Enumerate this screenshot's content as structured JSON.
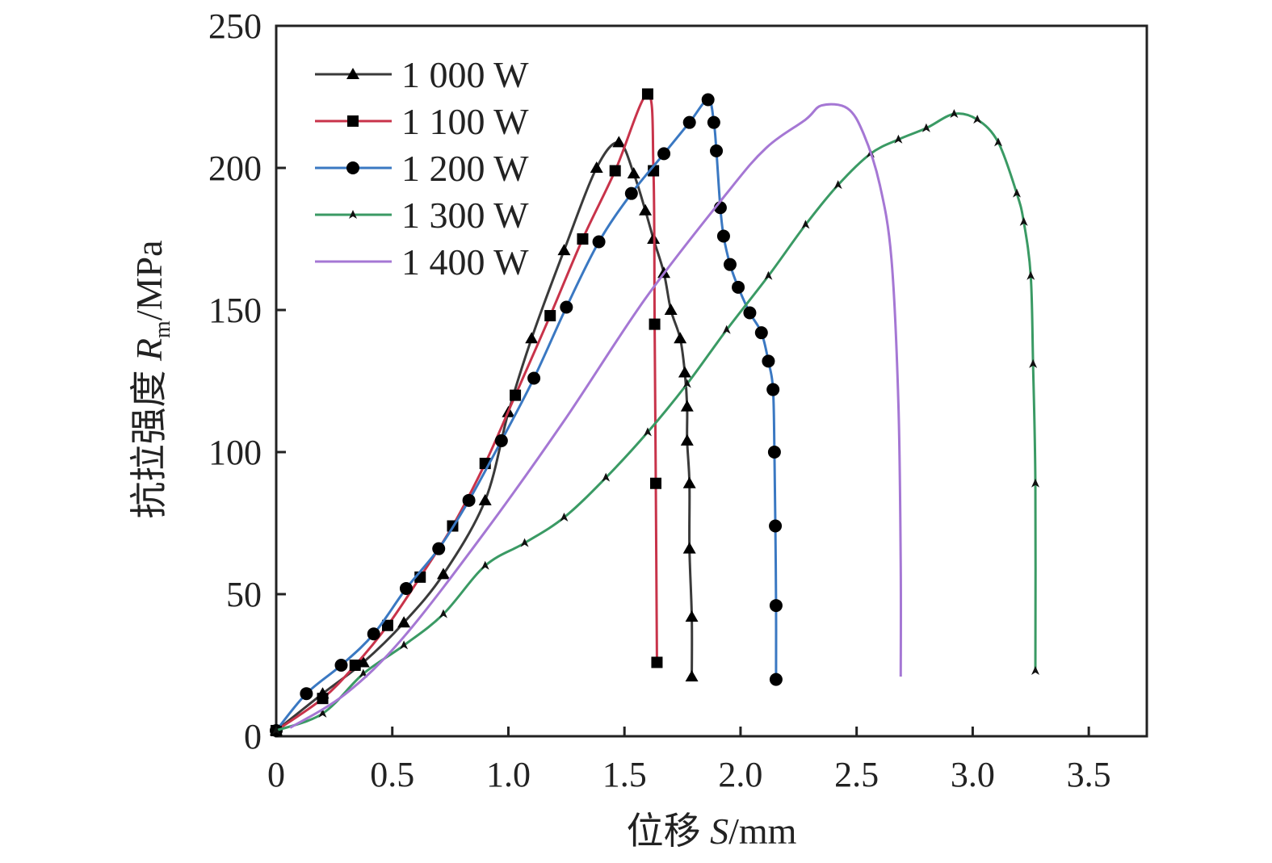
{
  "chart_data": {
    "type": "line",
    "title": "",
    "xlabel": "位移 S/mm",
    "xlabel_prefix": "位移 ",
    "xlabel_var": "S",
    "xlabel_unit": "/mm",
    "ylabel": "抗拉强度 Rm/MPa",
    "ylabel_prefix": "抗拉强度 ",
    "ylabel_var": "R",
    "ylabel_sub": "m",
    "ylabel_unit": "/MPa",
    "xlim": [
      0,
      3.75
    ],
    "ylim": [
      0,
      250
    ],
    "xticks": [
      "0",
      "0.5",
      "1.0",
      "1.5",
      "2.0",
      "2.5",
      "3.0",
      "3.5"
    ],
    "xtick_values": [
      0,
      0.5,
      1.0,
      1.5,
      2.0,
      2.5,
      3.0,
      3.5
    ],
    "yticks": [
      "0",
      "50",
      "100",
      "150",
      "200",
      "250"
    ],
    "ytick_values": [
      0,
      50,
      100,
      150,
      200,
      250
    ],
    "grid": false,
    "legend_position": "top-left",
    "series": [
      {
        "name": "1 000 W",
        "color": "#3a3a3a",
        "marker": "triangle",
        "x": [
          0,
          0.2,
          0.375,
          0.55,
          0.72,
          0.9,
          1.0,
          1.1,
          1.24,
          1.38,
          1.476,
          1.54,
          1.59,
          1.625,
          1.67,
          1.7,
          1.74,
          1.76,
          1.77,
          1.77,
          1.78,
          1.78,
          1.79,
          1.79
        ],
        "y": [
          2,
          15,
          26,
          40,
          57,
          83,
          114,
          140,
          171,
          200,
          209,
          198,
          185,
          175,
          163,
          150,
          140,
          128,
          116,
          104,
          89,
          66,
          42,
          21
        ]
      },
      {
        "name": "1 100 W",
        "color": "#c8334a",
        "marker": "square",
        "x": [
          0,
          0.2,
          0.34,
          0.48,
          0.62,
          0.76,
          0.9,
          1.03,
          1.18,
          1.32,
          1.46,
          1.6,
          1.625,
          1.63,
          1.635,
          1.64
        ],
        "y": [
          2,
          13.3,
          25,
          39,
          56,
          74,
          96,
          120,
          148,
          175,
          199,
          226,
          199,
          145,
          89,
          26
        ]
      },
      {
        "name": "1 200 W",
        "color": "#3a78c2",
        "marker": "circle",
        "x": [
          0,
          0.13,
          0.28,
          0.42,
          0.56,
          0.7,
          0.83,
          0.97,
          1.11,
          1.25,
          1.39,
          1.53,
          1.67,
          1.78,
          1.86,
          1.885,
          1.896,
          1.913,
          1.927,
          1.955,
          1.99,
          2.04,
          2.09,
          2.12,
          2.14,
          2.146,
          2.15,
          2.153,
          2.153
        ],
        "y": [
          2,
          15,
          25,
          36,
          52,
          66,
          83,
          104,
          126,
          151,
          174,
          191,
          205,
          216,
          224,
          216,
          206,
          186,
          176,
          166,
          158,
          149,
          142,
          132,
          122,
          100,
          74,
          46,
          20
        ]
      },
      {
        "name": "1 300 W",
        "color": "#3a9a64",
        "marker": "small-triangle",
        "x": [
          0,
          0.2,
          0.375,
          0.55,
          0.72,
          0.9,
          1.07,
          1.24,
          1.42,
          1.6,
          1.77,
          1.94,
          2.12,
          2.28,
          2.42,
          2.56,
          2.68,
          2.8,
          2.92,
          3.02,
          3.11,
          3.19,
          3.22,
          3.25,
          3.26,
          3.27,
          3.27
        ],
        "y": [
          2,
          8,
          22,
          32,
          43,
          60,
          68,
          77,
          91,
          107,
          124,
          143,
          162,
          180,
          194,
          205,
          210,
          214,
          219,
          217,
          209,
          191,
          181,
          162,
          131,
          89,
          23
        ]
      },
      {
        "name": "1 400 W",
        "color": "#a577d4",
        "marker": "none",
        "x": [
          0.06,
          0.3,
          0.55,
          0.9,
          1.24,
          1.59,
          1.94,
          2.11,
          2.28,
          2.35,
          2.46,
          2.53,
          2.6,
          2.65,
          2.68,
          2.69,
          2.69
        ],
        "y": [
          3,
          15,
          35,
          72,
          111,
          154,
          191,
          207,
          217,
          222,
          221,
          212,
          194,
          168,
          117,
          60,
          21
        ]
      }
    ]
  }
}
